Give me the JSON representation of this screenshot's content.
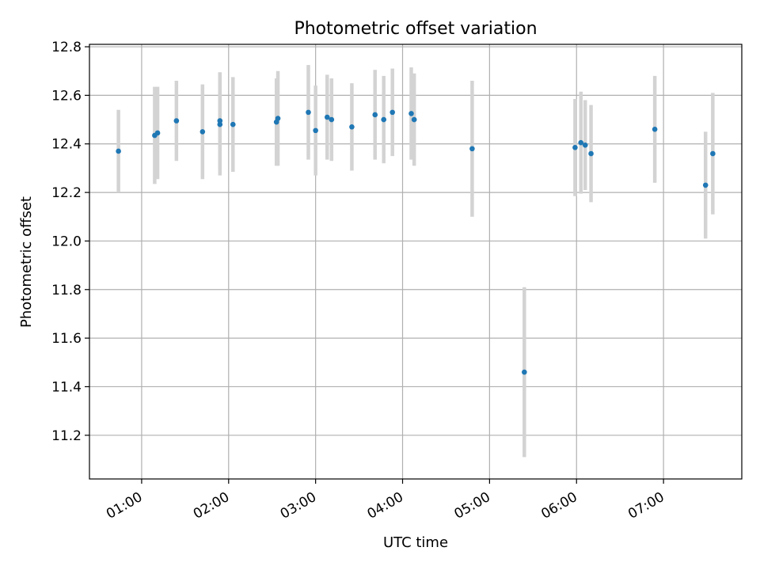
{
  "chart_data": {
    "type": "scatter",
    "title": "Photometric offset variation",
    "xlabel": "UTC time",
    "ylabel": "Photometric offset",
    "x_axis": "time",
    "xlim": [
      "00:24",
      "07:54"
    ],
    "ylim": [
      11.02,
      12.81
    ],
    "x_ticks": [
      "01:00",
      "02:00",
      "03:00",
      "04:00",
      "05:00",
      "06:00",
      "07:00"
    ],
    "y_ticks": [
      "11.2",
      "11.4",
      "11.6",
      "11.8",
      "12.0",
      "12.2",
      "12.4",
      "12.6",
      "12.8"
    ],
    "grid": true,
    "legend": "none",
    "colors": {
      "point": "#1f77b4",
      "errorbar": "#d3d3d3",
      "grid": "#b0b0b0",
      "axes": "#000000"
    },
    "series": [
      {
        "x": [
          "00:44",
          "01:09",
          "01:11",
          "01:24",
          "01:42",
          "01:54",
          "01:54",
          "02:03",
          "02:33",
          "02:34",
          "02:55",
          "03:00",
          "03:08",
          "03:11",
          "03:25",
          "03:41",
          "03:47",
          "03:53",
          "04:06",
          "04:08",
          "04:48",
          "05:24",
          "05:59",
          "06:03",
          "06:06",
          "06:10",
          "06:54",
          "07:29",
          "07:34"
        ],
        "y": [
          12.37,
          12.435,
          12.445,
          12.495,
          12.45,
          12.48,
          12.495,
          12.48,
          12.49,
          12.505,
          12.53,
          12.455,
          12.51,
          12.5,
          12.47,
          12.52,
          12.5,
          12.53,
          12.525,
          12.5,
          12.38,
          11.46,
          12.385,
          12.405,
          12.395,
          12.36,
          12.46,
          12.23,
          12.36
        ],
        "err": [
          0.17,
          0.2,
          0.19,
          0.165,
          0.195,
          0.21,
          0.2,
          0.195,
          0.18,
          0.195,
          0.195,
          0.185,
          0.175,
          0.17,
          0.18,
          0.185,
          0.18,
          0.18,
          0.19,
          0.19,
          0.28,
          0.35,
          0.2,
          0.21,
          0.185,
          0.2,
          0.22,
          0.22,
          0.25
        ]
      }
    ]
  }
}
